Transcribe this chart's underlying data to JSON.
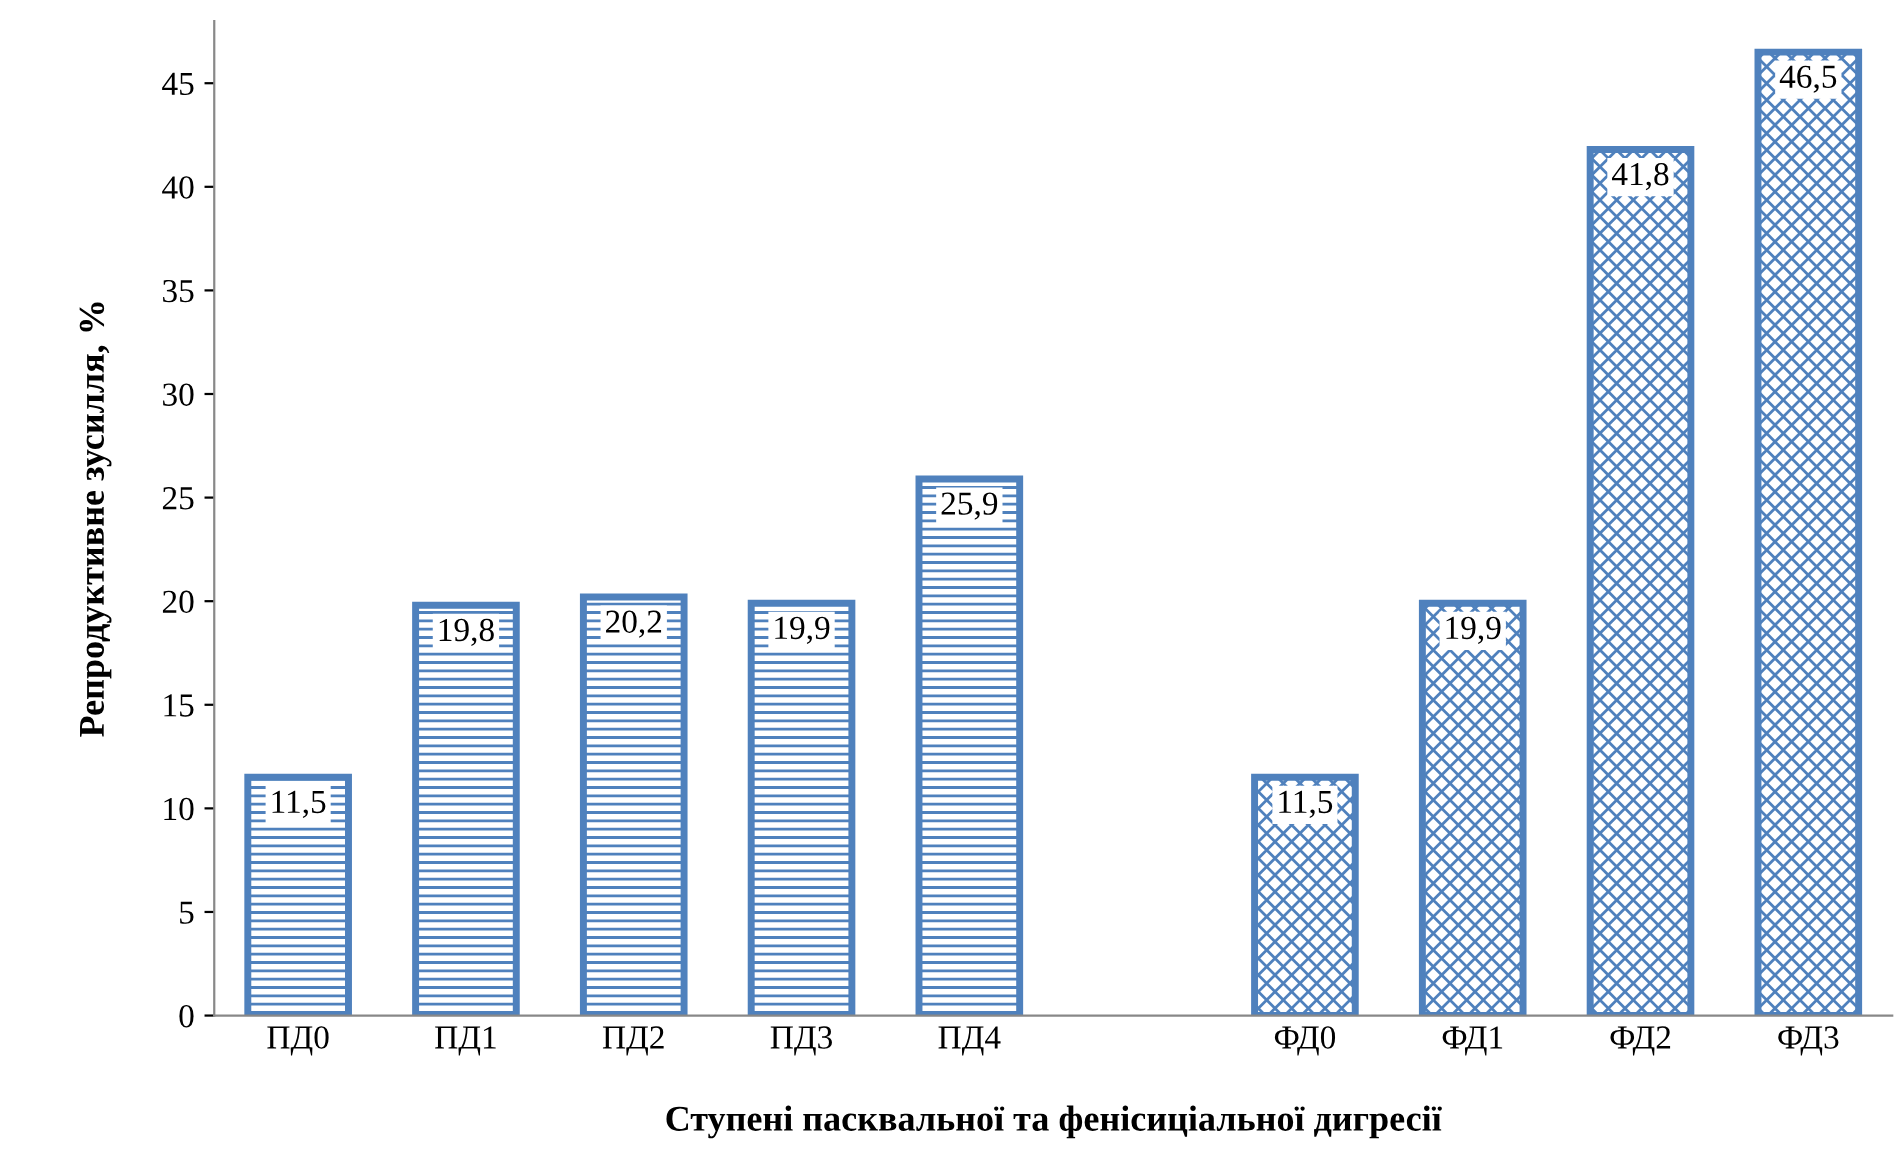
{
  "chart_data": {
    "type": "bar",
    "xlabel": "Ступені пасквальної та фенісиціальної дигресії",
    "ylabel": "Репродуктивне зусилля, %",
    "categories": [
      "ПД0",
      "ПД1",
      "ПД2",
      "ПД3",
      "ПД4",
      null,
      "ФД0",
      "ФД1",
      "ФД2",
      "ФД3"
    ],
    "series": [
      {
        "color": "#4f81bd",
        "values": [
          11.5,
          19.8,
          20.2,
          19.9,
          25.9,
          null,
          null,
          null,
          null,
          null
        ],
        "value_labels": [
          "11,5",
          "19,8",
          "20,2",
          "19,9",
          "25,9",
          null,
          null,
          null,
          null,
          null
        ]
      },
      {
        "color": "#4f81bd",
        "values": [
          null,
          null,
          null,
          null,
          null,
          null,
          11.5,
          19.9,
          41.8,
          46.5
        ],
        "value_labels": [
          null,
          null,
          null,
          null,
          null,
          null,
          "11,5",
          "19,9",
          "41,8",
          "46,5"
        ]
      }
    ],
    "ylim": [
      0,
      48
    ],
    "yticks": [
      0,
      5,
      10,
      15,
      20,
      25,
      30,
      35,
      40,
      45
    ],
    "grid": false,
    "legend": false
  }
}
